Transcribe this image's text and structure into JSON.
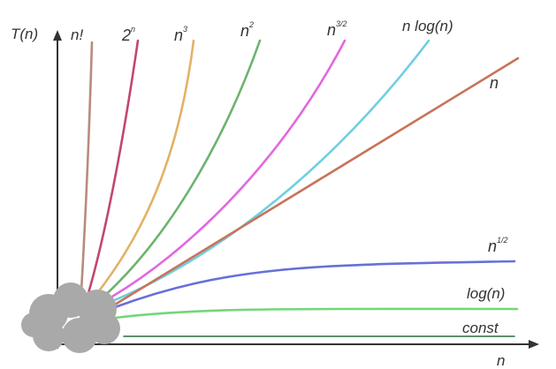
{
  "axes": {
    "y_label": "T(n)",
    "x_label": "n"
  },
  "curves": [
    {
      "key": "factorial",
      "base": "n!",
      "exp": "",
      "color": "#b98a80"
    },
    {
      "key": "exponential",
      "base": "2",
      "exp": "n",
      "color": "#c2476c"
    },
    {
      "key": "cubic",
      "base": "n",
      "exp": "3",
      "color": "#e2b266"
    },
    {
      "key": "quadratic",
      "base": "n",
      "exp": "2",
      "color": "#6cb36e"
    },
    {
      "key": "n_three_halves",
      "base": "n",
      "exp": "3/2",
      "color": "#e267e0"
    },
    {
      "key": "n_log_n",
      "base": "n log(n)",
      "exp": "",
      "color": "#6fcfe0"
    },
    {
      "key": "linear",
      "base": "n",
      "exp": "",
      "color": "#c8735a"
    },
    {
      "key": "sqrt",
      "base": "n",
      "exp": "1/2",
      "color": "#6770d8"
    },
    {
      "key": "log",
      "base": "log(n)",
      "exp": "",
      "color": "#74d67a"
    },
    {
      "key": "constant",
      "base": "const",
      "exp": "",
      "color": "#2f6a3a"
    }
  ],
  "blob_color": "#a9a9a9",
  "axis_color": "#333333"
}
